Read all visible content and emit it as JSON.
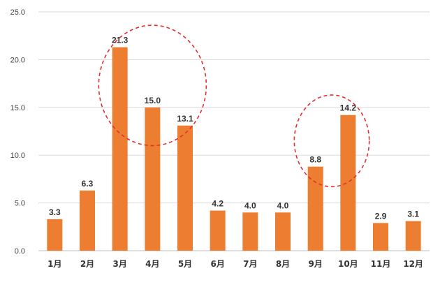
{
  "colors": {
    "bar": "#ed7d31",
    "highlight": "#e03030",
    "grid": "#d9d9d9"
  },
  "chart_data": {
    "type": "bar",
    "categories": [
      "1月",
      "2月",
      "3月",
      "4月",
      "5月",
      "6月",
      "7月",
      "8月",
      "9月",
      "10月",
      "11月",
      "12月"
    ],
    "values": [
      3.3,
      6.3,
      21.3,
      15.0,
      13.1,
      4.2,
      4.0,
      4.0,
      8.8,
      14.2,
      2.9,
      3.1
    ],
    "data_labels": [
      "3.3",
      "6.3",
      "21.3",
      "15.0",
      "13.1",
      "4.2",
      "4.0",
      "4.0",
      "8.8",
      "14.2",
      "2.9",
      "3.1"
    ],
    "title": "",
    "xlabel": "",
    "ylabel": "",
    "ylim": [
      0,
      25
    ],
    "yticks": [
      0,
      5,
      10,
      15,
      20,
      25
    ],
    "ytick_labels": [
      "0.0",
      "5.0",
      "10.0",
      "15.0",
      "20.0",
      "25.0"
    ],
    "grid": true,
    "legend": "none",
    "annotations": [
      {
        "type": "dashed-ellipse",
        "around_categories": [
          "3月",
          "4月",
          "5月"
        ],
        "y_center": 17.3,
        "y_radius": 6.3
      },
      {
        "type": "dashed-ellipse",
        "around_categories": [
          "9月",
          "10月"
        ],
        "y_center": 11.5,
        "y_radius": 4.8
      }
    ]
  }
}
